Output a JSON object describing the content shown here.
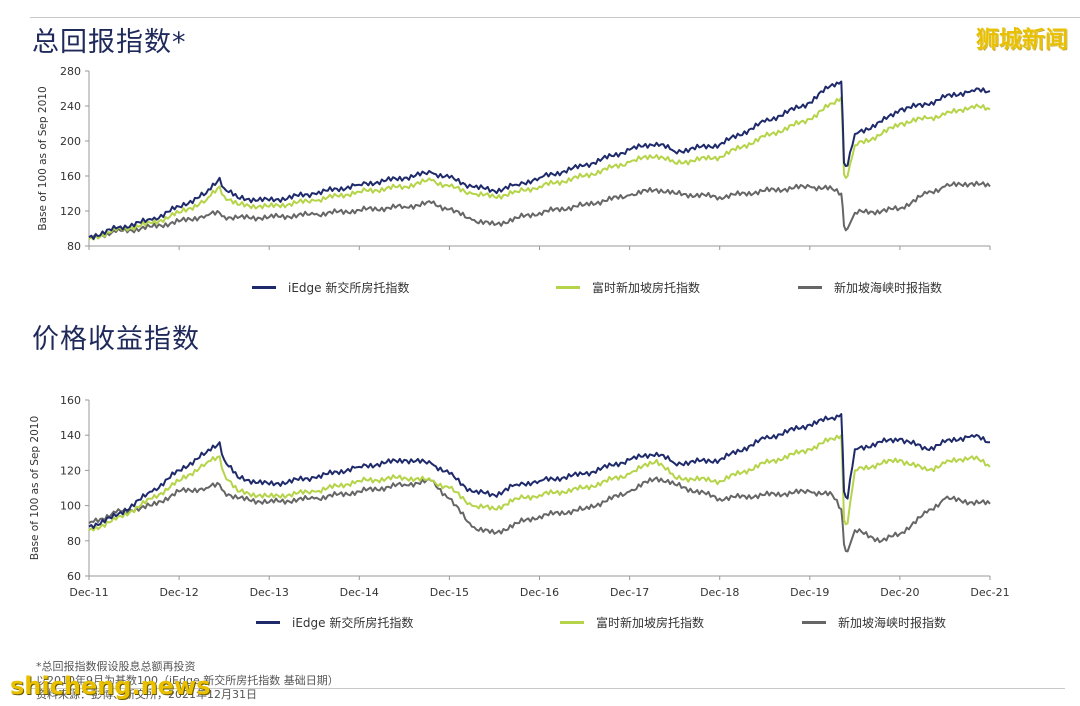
{
  "titles": {
    "total_return": "总回报指数*",
    "price_return": "价格收益指数"
  },
  "watermark": {
    "cn": "狮城新闻",
    "en": "shicheng.news"
  },
  "notes": {
    "line1": "*总回报指数假设股息总额再投资",
    "line2": "以2010年9月为基数100（iEdge 新交所房托指数 基础日期）",
    "line3": "资料来源：彭博、新交所，2021年12月31日"
  },
  "colors": {
    "navy": "#1f2a6b",
    "green": "#b6d44a",
    "gray": "#666666",
    "axis": "#999999"
  },
  "chart_data": [
    {
      "type": "line",
      "title": "总回报指数*",
      "xlabel": "",
      "ylabel": "Base of 100 as of Sep 2010",
      "ylim": [
        80,
        280
      ],
      "yticks": [
        80,
        120,
        160,
        200,
        240,
        280
      ],
      "xticks": [
        "Dec-11",
        "Dec-12",
        "Dec-13",
        "Dec-14",
        "Dec-15",
        "Dec-16",
        "Dec-17",
        "Dec-18",
        "Dec-19",
        "Dec-20",
        "Dec-21"
      ],
      "xlim": [
        0,
        10
      ],
      "grid": false,
      "legend": "bottom",
      "series": [
        {
          "name": "iEdge 新交所房托指数",
          "color": "#1f2a6b",
          "x": [
            0,
            0.3,
            0.7,
            1.0,
            1.3,
            1.45,
            1.5,
            1.65,
            2.0,
            2.5,
            3.0,
            3.5,
            3.8,
            4.0,
            4.25,
            4.5,
            4.75,
            5.0,
            5.5,
            6.0,
            6.3,
            6.5,
            7.0,
            7.5,
            8.0,
            8.25,
            8.35,
            8.38,
            8.42,
            8.5,
            8.8,
            9.0,
            9.3,
            9.5,
            9.8,
            10.0
          ],
          "values": [
            90,
            100,
            110,
            125,
            140,
            158,
            146,
            135,
            132,
            140,
            150,
            158,
            164,
            158,
            148,
            143,
            150,
            158,
            172,
            190,
            198,
            188,
            196,
            222,
            244,
            265,
            268,
            175,
            172,
            208,
            222,
            236,
            242,
            250,
            258,
            257
          ]
        },
        {
          "name": "富时新加坡房托指数",
          "color": "#b6d44a",
          "x": [
            0,
            0.3,
            0.7,
            1.0,
            1.3,
            1.45,
            1.5,
            1.65,
            2.0,
            2.5,
            3.0,
            3.5,
            3.8,
            4.0,
            4.25,
            4.5,
            4.75,
            5.0,
            5.5,
            6.0,
            6.3,
            6.5,
            7.0,
            7.5,
            8.0,
            8.25,
            8.35,
            8.38,
            8.42,
            8.5,
            8.8,
            9.0,
            9.3,
            9.5,
            9.8,
            10.0
          ],
          "values": [
            88,
            98,
            106,
            118,
            132,
            148,
            137,
            127,
            125,
            132,
            142,
            148,
            155,
            148,
            140,
            136,
            142,
            148,
            160,
            176,
            184,
            175,
            182,
            205,
            225,
            243,
            250,
            162,
            160,
            195,
            208,
            220,
            226,
            230,
            240,
            236
          ]
        },
        {
          "name": "新加坡海峡时报指数",
          "color": "#666666",
          "x": [
            0,
            0.3,
            0.7,
            1.0,
            1.3,
            1.45,
            1.5,
            1.65,
            2.0,
            2.5,
            3.0,
            3.5,
            3.8,
            4.0,
            4.25,
            4.5,
            4.75,
            5.0,
            5.5,
            6.0,
            6.3,
            6.5,
            7.0,
            7.5,
            8.0,
            8.25,
            8.35,
            8.38,
            8.42,
            8.5,
            8.8,
            9.0,
            9.3,
            9.5,
            9.8,
            10.0
          ],
          "values": [
            90,
            96,
            102,
            108,
            115,
            118,
            114,
            112,
            113,
            116,
            121,
            125,
            129,
            122,
            110,
            104,
            112,
            118,
            127,
            138,
            145,
            140,
            136,
            143,
            148,
            145,
            140,
            103,
            100,
            118,
            120,
            123,
            140,
            148,
            152,
            148
          ]
        }
      ]
    },
    {
      "type": "line",
      "title": "价格收益指数",
      "xlabel": "",
      "ylabel": "Base of 100 as of Sep 2010",
      "ylim": [
        60,
        160
      ],
      "yticks": [
        60,
        80,
        100,
        120,
        140,
        160
      ],
      "xticks": [
        "Dec-11",
        "Dec-12",
        "Dec-13",
        "Dec-14",
        "Dec-15",
        "Dec-16",
        "Dec-17",
        "Dec-18",
        "Dec-19",
        "Dec-20",
        "Dec-21"
      ],
      "xlim": [
        0,
        10
      ],
      "grid": false,
      "legend": "bottom",
      "series": [
        {
          "name": "iEdge 新交所房托指数",
          "color": "#1f2a6b",
          "x": [
            0,
            0.3,
            0.7,
            1.0,
            1.3,
            1.45,
            1.5,
            1.65,
            2.0,
            2.5,
            3.0,
            3.5,
            3.8,
            4.0,
            4.25,
            4.5,
            4.75,
            5.0,
            5.5,
            6.0,
            6.3,
            6.5,
            7.0,
            7.5,
            8.0,
            8.25,
            8.35,
            8.38,
            8.42,
            8.5,
            8.8,
            9.0,
            9.3,
            9.5,
            9.8,
            10.0
          ],
          "values": [
            88,
            94,
            108,
            120,
            130,
            136,
            126,
            116,
            112,
            116,
            122,
            126,
            124,
            118,
            108,
            106,
            112,
            114,
            118,
            126,
            130,
            124,
            126,
            138,
            146,
            150,
            152,
            108,
            104,
            132,
            136,
            138,
            132,
            136,
            140,
            136
          ]
        },
        {
          "name": "富时新加坡房托指数",
          "color": "#b6d44a",
          "x": [
            0,
            0.3,
            0.7,
            1.0,
            1.3,
            1.45,
            1.5,
            1.65,
            2.0,
            2.5,
            3.0,
            3.5,
            3.8,
            4.0,
            4.25,
            4.5,
            4.75,
            5.0,
            5.5,
            6.0,
            6.3,
            6.5,
            7.0,
            7.5,
            8.0,
            8.25,
            8.35,
            8.38,
            8.42,
            8.5,
            8.8,
            9.0,
            9.3,
            9.5,
            9.8,
            10.0
          ],
          "values": [
            86,
            92,
            104,
            114,
            124,
            128,
            118,
            108,
            105,
            108,
            114,
            116,
            114,
            110,
            100,
            98,
            104,
            106,
            110,
            118,
            126,
            116,
            114,
            124,
            132,
            138,
            140,
            92,
            90,
            120,
            124,
            126,
            120,
            124,
            128,
            122
          ]
        },
        {
          "name": "新加坡海峡时报指数",
          "color": "#666666",
          "x": [
            0,
            0.3,
            0.7,
            1.0,
            1.3,
            1.45,
            1.5,
            1.65,
            2.0,
            2.5,
            3.0,
            3.5,
            3.8,
            4.0,
            4.25,
            4.5,
            4.75,
            5.0,
            5.5,
            6.0,
            6.3,
            6.5,
            7.0,
            7.5,
            8.0,
            8.25,
            8.35,
            8.38,
            8.42,
            8.5,
            8.8,
            9.0,
            9.3,
            9.5,
            9.8,
            10.0
          ],
          "values": [
            90,
            96,
            100,
            108,
            110,
            112,
            108,
            104,
            102,
            104,
            108,
            112,
            114,
            104,
            88,
            84,
            90,
            94,
            98,
            108,
            116,
            112,
            104,
            106,
            108,
            106,
            98,
            78,
            74,
            86,
            80,
            84,
            96,
            104,
            102,
            101
          ]
        }
      ]
    }
  ]
}
